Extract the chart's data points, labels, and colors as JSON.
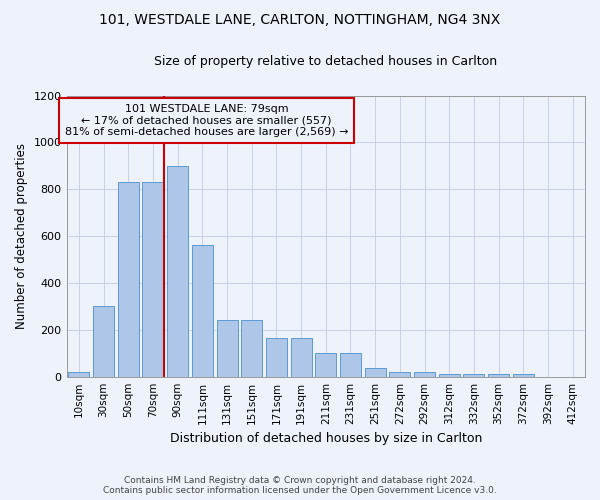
{
  "title_line1": "101, WESTDALE LANE, CARLTON, NOTTINGHAM, NG4 3NX",
  "title_line2": "Size of property relative to detached houses in Carlton",
  "xlabel": "Distribution of detached houses by size in Carlton",
  "ylabel": "Number of detached properties",
  "annotation_line1": "101 WESTDALE LANE: 79sqm",
  "annotation_line2": "← 17% of detached houses are smaller (557)",
  "annotation_line3": "81% of semi-detached houses are larger (2,569) →",
  "footer_line1": "Contains HM Land Registry data © Crown copyright and database right 2024.",
  "footer_line2": "Contains public sector information licensed under the Open Government Licence v3.0.",
  "bar_values": [
    20,
    300,
    830,
    830,
    900,
    560,
    240,
    240,
    165,
    165,
    100,
    100,
    35,
    20,
    20,
    10,
    10,
    10,
    10,
    0,
    0
  ],
  "bar_labels": [
    "10sqm",
    "30sqm",
    "50sqm",
    "70sqm",
    "90sqm",
    "111sqm",
    "131sqm",
    "151sqm",
    "171sqm",
    "191sqm",
    "211sqm",
    "231sqm",
    "251sqm",
    "272sqm",
    "292sqm",
    "312sqm",
    "332sqm",
    "352sqm",
    "372sqm",
    "392sqm",
    "412sqm"
  ],
  "bar_color": "#aec6e8",
  "bar_edge_color": "#5b9bd5",
  "vline_color": "#cc0000",
  "annotation_box_color": "#cc0000",
  "background_color": "#eef2fb",
  "grid_color": "#c8d0e8",
  "ylim": [
    0,
    1200
  ],
  "yticks": [
    0,
    200,
    400,
    600,
    800,
    1000,
    1200
  ]
}
